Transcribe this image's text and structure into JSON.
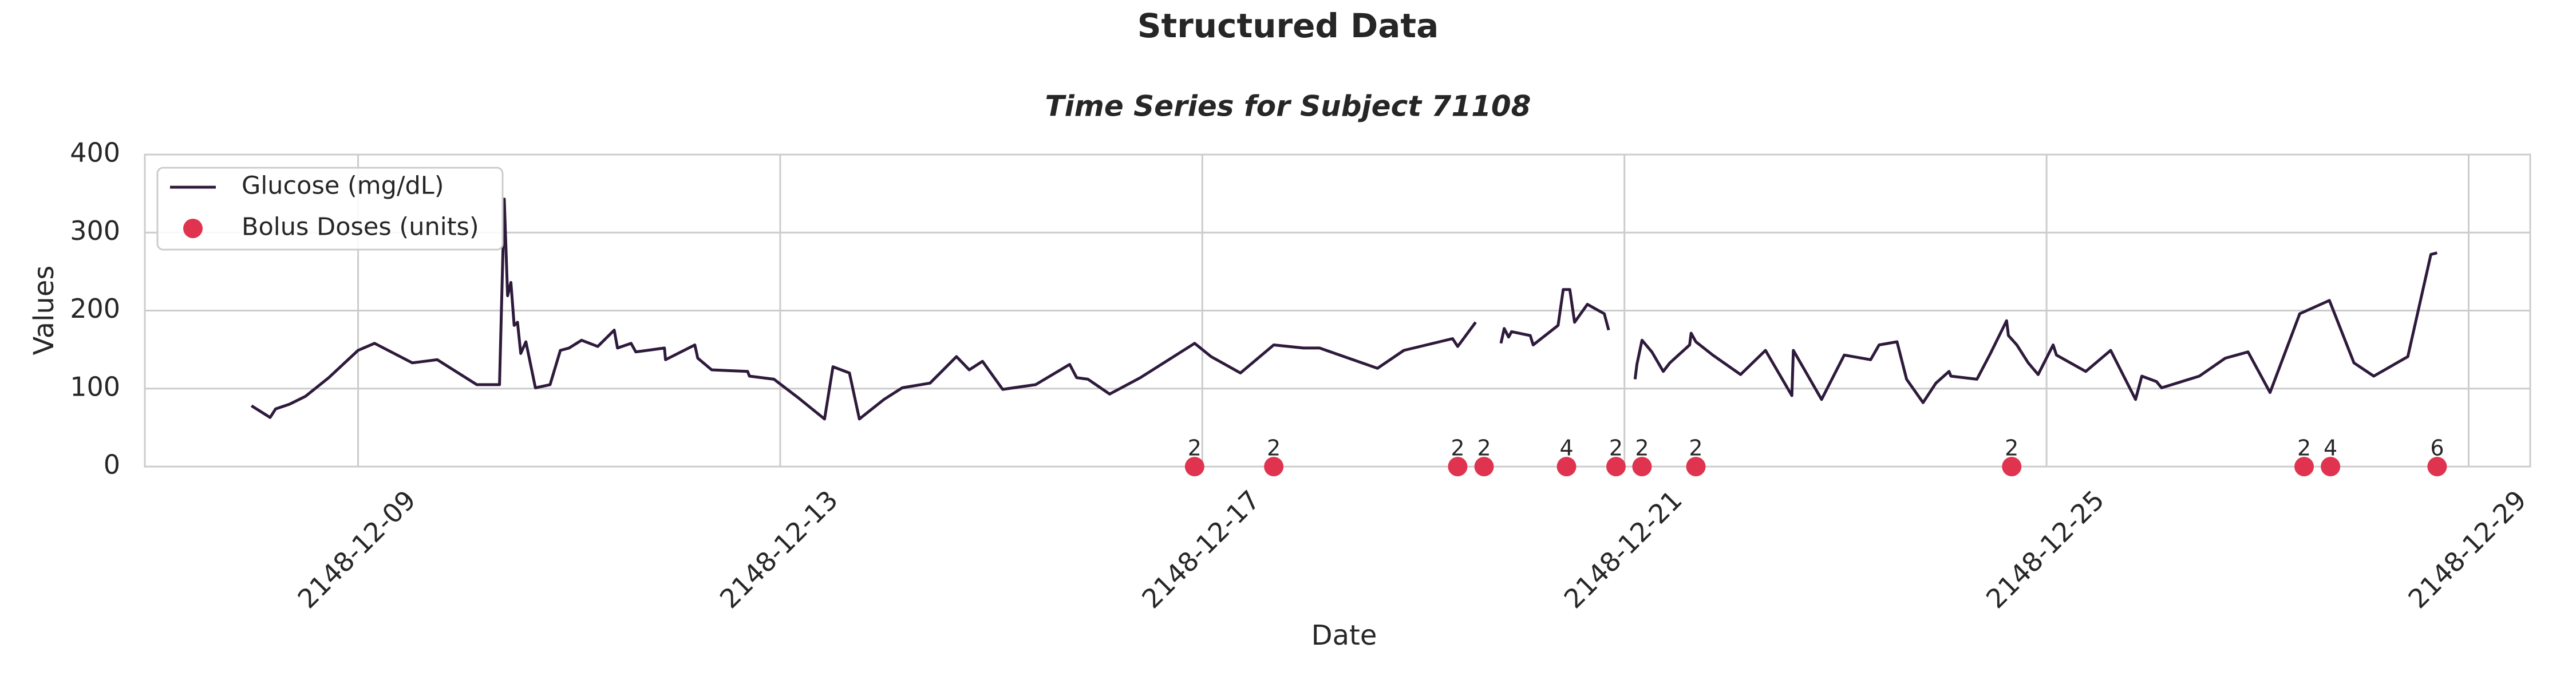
{
  "chart_data": {
    "type": "line",
    "title": "Structured Data",
    "subtitle": "Time Series for Subject 71108",
    "xlabel": "Date",
    "ylabel": "Values",
    "xlim": [
      "2148-12-06 23:30",
      "2148-12-29 14:00"
    ],
    "xticks": [
      "2148-12-09",
      "2148-12-13",
      "2148-12-17",
      "2148-12-21",
      "2148-12-25",
      "2148-12-29"
    ],
    "ylim": [
      0,
      400
    ],
    "yticks": [
      0,
      100,
      200,
      300,
      400
    ],
    "grid": true,
    "legend": "upper left",
    "series": [
      {
        "name": "Glucose (mg/dL)",
        "type": "line",
        "color": "#2e1a3b",
        "x": [
          "2148-12-07 23:45",
          "2148-12-08 04:00",
          "2148-12-08 05:15",
          "2148-12-08 08:25",
          "2148-12-08 12:00",
          "2148-12-08 17:20",
          "2148-12-09 00:00",
          "2148-12-09 03:45",
          "2148-12-09 12:20",
          "2148-12-09 18:00",
          "2148-12-10 03:00",
          "2148-12-10 08:10",
          "2148-12-10 09:15",
          "2148-12-10 10:00",
          "2148-12-10 10:45",
          "2148-12-10 11:30",
          "2148-12-10 12:15",
          "2148-12-10 13:00",
          "2148-12-10 14:10",
          "2148-12-10 16:20",
          "2148-12-10 19:40",
          "2148-12-10 22:00",
          "2148-12-11 00:00",
          "2148-12-11 02:50",
          "2148-12-11 06:30",
          "2148-12-11 10:15",
          "2148-12-11 11:00",
          "2148-12-11 14:05",
          "2148-12-11 15:10",
          "2148-12-11 21:40",
          "2148-12-11 21:55",
          "2148-12-12 04:35",
          "2148-12-12 05:15",
          "2148-12-12 08:25",
          "2148-12-12 16:35",
          "2148-12-12 17:00",
          "2148-12-12 22:35",
          "2148-12-13 04:10",
          "2148-12-13 10:05",
          "2148-12-13 12:00",
          "2148-12-13 15:45",
          "2148-12-13 18:00",
          "2148-12-13 23:35",
          "2148-12-14 03:45",
          "2148-12-14 10:05",
          "2148-12-14 16:05",
          "2148-12-14 19:00",
          "2148-12-14 22:00",
          "2148-12-15 02:35",
          "2148-12-15 10:05",
          "2148-12-15 17:50",
          "2148-12-15 19:25",
          "2148-12-15 22:00",
          "2148-12-16 02:55",
          "2148-12-16 09:55",
          "2148-12-16 22:15",
          "2148-12-17 02:00",
          "2148-12-17 08:40",
          "2148-12-17 16:15",
          "2148-12-17 23:00",
          "2148-12-18 02:40",
          "2148-12-18 15:50",
          "2148-12-18 21:50",
          "2148-12-19 08:55",
          "2148-12-19 10:05",
          "2148-12-19 14:10",
          "2148-12-19 17:00",
          "2148-12-19 19:55",
          "2148-12-19 20:40",
          "2148-12-19 21:40",
          "2148-12-19 22:20",
          "2148-12-20 02:35",
          "2148-12-20 03:15",
          "2148-12-20 08:55",
          "2148-12-20 10:05",
          "2148-12-20 11:35",
          "2148-12-20 12:40",
          "2148-12-20 15:35",
          "2148-12-20 19:25",
          "2148-12-20 20:25",
          "2148-12-20 23:30",
          "2148-12-21 02:25",
          "2148-12-21 02:50",
          "2148-12-21 04:00",
          "2148-12-21 06:15",
          "2148-12-21 08:50",
          "2148-12-21 10:20",
          "2148-12-21 14:50",
          "2148-12-21 15:10",
          "2148-12-21 16:15",
          "2148-12-21 20:05",
          "2148-12-22 02:25",
          "2148-12-22 08:05",
          "2148-12-22 14:05",
          "2148-12-22 14:25",
          "2148-12-22 20:50",
          "2148-12-23 02:00",
          "2148-12-23 08:00",
          "2148-12-23 09:55",
          "2148-12-23 14:00",
          "2148-12-23 16:10",
          "2148-12-23 19:55",
          "2148-12-23 22:50",
          "2148-12-24 01:50",
          "2148-12-24 02:15",
          "2148-12-24 08:10",
          "2148-12-24 11:15",
          "2148-12-24 14:55",
          "2148-12-24 15:20",
          "2148-12-24 17:15",
          "2148-12-24 19:50",
          "2148-12-24 22:05",
          "2148-12-25 01:30",
          "2148-12-25 02:15",
          "2148-12-25 08:55",
          "2148-12-25 14:35",
          "2148-12-25 20:15",
          "2148-12-25 21:40",
          "2148-12-26 01:00",
          "2148-12-26 02:10",
          "2148-12-26 10:45",
          "2148-12-26 16:40",
          "2148-12-26 21:50",
          "2148-12-27 02:50",
          "2148-12-27 09:35",
          "2148-12-27 16:20",
          "2148-12-27 21:55",
          "2148-12-28 02:25",
          "2148-12-28 10:10",
          "2148-12-28 15:25",
          "2148-12-28 16:50"
        ],
        "values": [
          78,
          63,
          74,
          80,
          90,
          114,
          149,
          158,
          133,
          137,
          105,
          105,
          343,
          219,
          236,
          181,
          185,
          145,
          160,
          101,
          105,
          149,
          152,
          162,
          154,
          175,
          152,
          158,
          147,
          152,
          137,
          156,
          139,
          124,
          122,
          116,
          112,
          88,
          61,
          128,
          120,
          61,
          86,
          101,
          107,
          141,
          124,
          135,
          99,
          105,
          131,
          114,
          112,
          93,
          114,
          158,
          141,
          120,
          156,
          152,
          152,
          126,
          149,
          164,
          154,
          185,
          null,
          158,
          177,
          166,
          173,
          168,
          156,
          181,
          227,
          227,
          185,
          208,
          196,
          175,
          null,
          112,
          131,
          162,
          147,
          122,
          133,
          156,
          171,
          160,
          143,
          118,
          149,
          91,
          149,
          86,
          143,
          137,
          156,
          160,
          112,
          82,
          107,
          122,
          116,
          112,
          145,
          187,
          168,
          156,
          133,
          118,
          156,
          143,
          122,
          149,
          86,
          116,
          109,
          101,
          116,
          139,
          147,
          95,
          196,
          213,
          133,
          116,
          141,
          272,
          274
        ]
      },
      {
        "name": "Bolus Doses (units)",
        "type": "scatter",
        "color": "#e0334f",
        "marker_y": 0,
        "x": [
          "2148-12-16 22:15",
          "2148-12-17 16:15",
          "2148-12-19 10:05",
          "2148-12-19 16:05",
          "2148-12-20 10:50",
          "2148-12-20 22:05",
          "2148-12-21 04:00",
          "2148-12-21 16:15",
          "2148-12-24 16:05",
          "2148-12-27 10:35",
          "2148-12-27 16:35",
          "2148-12-28 16:50"
        ],
        "values": [
          2,
          2,
          2,
          2,
          4,
          2,
          2,
          2,
          2,
          2,
          4,
          6
        ]
      }
    ]
  }
}
